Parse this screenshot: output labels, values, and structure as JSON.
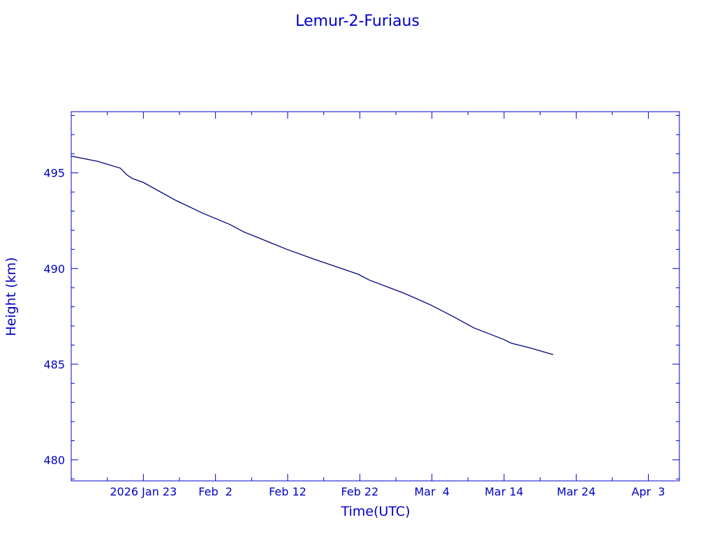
{
  "chart_data": {
    "type": "line",
    "title": "Lemur-2-Furiaus",
    "xlabel": "Time(UTC)",
    "ylabel": "Height (km)",
    "x_unit": "day of year 2026",
    "xlim": [
      13,
      97.3
    ],
    "ylim": [
      478.9,
      498.2
    ],
    "grid": false,
    "color": "#00007f",
    "axis_color": "#0000c8",
    "x_ticks": [
      {
        "value": 23,
        "label": "2026 Jan 23"
      },
      {
        "value": 33,
        "label": "Feb  2"
      },
      {
        "value": 43,
        "label": "Feb 12"
      },
      {
        "value": 53,
        "label": "Feb 22"
      },
      {
        "value": 63,
        "label": "Mar  4"
      },
      {
        "value": 73,
        "label": "Mar 14"
      },
      {
        "value": 83,
        "label": "Mar 24"
      },
      {
        "value": 93,
        "label": "Apr  3"
      }
    ],
    "x_minor_step": 5,
    "y_ticks": [
      {
        "value": 480,
        "label": "480"
      },
      {
        "value": 485,
        "label": "485"
      },
      {
        "value": 490,
        "label": "490"
      },
      {
        "value": 495,
        "label": "495"
      }
    ],
    "y_minor_step": 1,
    "series": [
      {
        "name": "Height",
        "x": [
          13,
          16.7,
          19.8,
          20.7,
          21.5,
          23,
          27.3,
          31.2,
          35,
          37,
          39,
          42.9,
          46.6,
          52.8,
          54.3,
          59.2,
          62.8,
          65.9,
          68.8,
          72.9,
          74,
          76.6,
          79.8
        ],
        "y": [
          495.88,
          495.6,
          495.25,
          494.9,
          494.7,
          494.5,
          493.6,
          492.9,
          492.3,
          491.9,
          491.6,
          491.0,
          490.5,
          489.7,
          489.4,
          488.7,
          488.1,
          487.5,
          486.9,
          486.3,
          486.1,
          485.85,
          485.5
        ]
      }
    ]
  }
}
